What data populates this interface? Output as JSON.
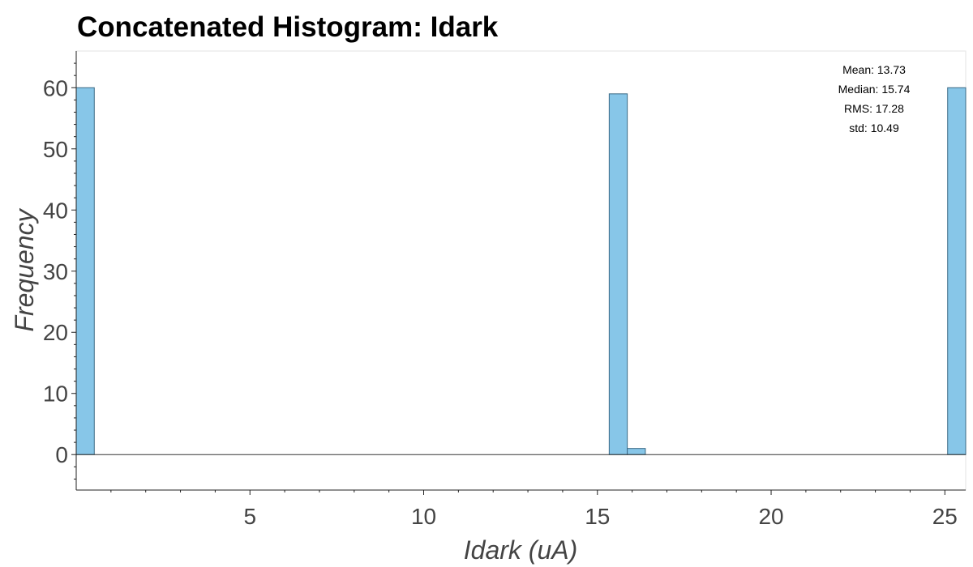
{
  "chart_data": {
    "type": "bar",
    "title": "Concatenated Histogram: Idark",
    "xlabel": "Idark (uA)",
    "ylabel": "Frequency",
    "xlim": [
      0.0,
      25.6
    ],
    "ylim": [
      -5.8,
      66
    ],
    "xticks": [
      5,
      10,
      15,
      20,
      25
    ],
    "yticks": [
      0,
      10,
      20,
      30,
      40,
      50,
      60
    ],
    "grid": false,
    "bar_color": "#87c6e8",
    "bar_edge_color": "#3a6a86",
    "bins": [
      {
        "x0": 0.0,
        "x1": 0.52,
        "value": 60
      },
      {
        "x0": 15.34,
        "x1": 15.86,
        "value": 59
      },
      {
        "x0": 15.86,
        "x1": 16.38,
        "value": 1
      },
      {
        "x0": 25.08,
        "x1": 25.6,
        "value": 60
      }
    ],
    "stats": [
      "Mean: 13.73",
      "Median: 15.74",
      "RMS: 17.28",
      "std: 10.49"
    ]
  }
}
